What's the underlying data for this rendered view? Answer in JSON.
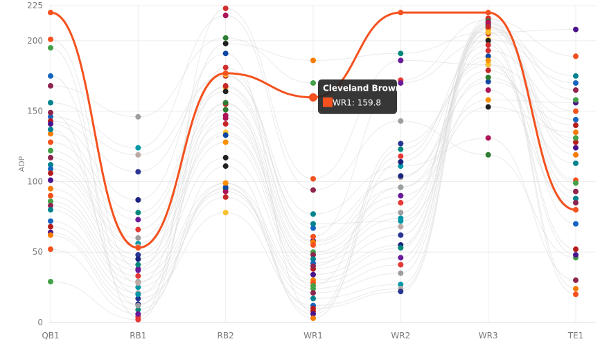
{
  "chart_data": {
    "type": "line",
    "subtype": "parallel-coordinates",
    "categories": [
      "QB1",
      "RB1",
      "RB2",
      "WR1",
      "WR2",
      "WR3",
      "TE1"
    ],
    "ylabel": "ADP",
    "ylim": [
      0,
      225
    ],
    "yticks": [
      0,
      50,
      100,
      150,
      200,
      225
    ],
    "grid": true,
    "colors": [
      "#f4511e",
      "#1a237e",
      "#c62828",
      "#43a047",
      "#00897b",
      "#fbc02d",
      "#8e244d",
      "#6a1b9a",
      "#0d47a1",
      "#00838f",
      "#e53935",
      "#ff8f00",
      "#1565c0",
      "#9e9e9e",
      "#212121",
      "#b71c1c",
      "#0097a7",
      "#d32f2f",
      "#4a148c",
      "#bcaaa4",
      "#2e7d32",
      "#f57c00",
      "#283593",
      "#ad1457"
    ],
    "highlight": {
      "name": "Cleveland Browns",
      "color": "#f4511e",
      "values": [
        220,
        53,
        177,
        159.8,
        220,
        220,
        80
      ]
    },
    "tooltip": {
      "title": "Cleveland Browns",
      "label": "WR1: 159.8",
      "category": "WR1",
      "value": 159.8
    },
    "series": [
      {
        "values": [
          201,
          38,
          198,
          186,
          191,
          206,
          208
        ]
      },
      {
        "values": [
          195,
          4,
          223,
          102,
          186,
          183,
          80
        ]
      },
      {
        "values": [
          168,
          146,
          202,
          170,
          172,
          215,
          189
        ]
      },
      {
        "values": [
          156,
          124,
          218,
          94,
          143,
          119,
          46
        ]
      },
      {
        "values": [
          146,
          119,
          175,
          77,
          111,
          131,
          30
        ]
      },
      {
        "values": [
          143,
          107,
          176,
          67,
          103,
          179,
          113
        ]
      },
      {
        "values": [
          141,
          87,
          191,
          8,
          127,
          183,
          144
        ]
      },
      {
        "values": [
          134,
          78,
          167,
          58,
          104,
          171,
          140
        ]
      },
      {
        "values": [
          128,
          73,
          164,
          57,
          96,
          158,
          156
        ]
      },
      {
        "values": [
          122,
          66,
          155,
          55,
          90,
          153,
          135
        ]
      },
      {
        "values": [
          117,
          60,
          151,
          50,
          85,
          193,
          150
        ]
      },
      {
        "values": [
          112,
          56,
          147,
          48,
          78,
          209,
          158
        ]
      },
      {
        "values": [
          109,
          54,
          141,
          45,
          74,
          212,
          165
        ]
      },
      {
        "values": [
          106,
          48,
          135,
          42,
          68,
          205,
          175
        ]
      },
      {
        "values": [
          101,
          45,
          133,
          38,
          62,
          201,
          170
        ]
      },
      {
        "values": [
          95,
          41,
          128,
          34,
          55,
          211,
          128
        ]
      },
      {
        "values": [
          90,
          37,
          117,
          30,
          53,
          208,
          124
        ]
      },
      {
        "values": [
          86,
          33,
          99,
          28,
          46,
          210,
          119
        ]
      },
      {
        "values": [
          83,
          29,
          95,
          24,
          41,
          216,
          101
        ]
      },
      {
        "values": [
          80,
          25,
          93,
          21,
          35,
          214,
          99
        ]
      },
      {
        "values": [
          72,
          21,
          89,
          17,
          27,
          213,
          93
        ]
      },
      {
        "values": [
          68,
          17,
          78,
          12,
          24,
          210,
          88
        ]
      },
      {
        "values": [
          64,
          13,
          96,
          10,
          22,
          206,
          70
        ]
      },
      {
        "values": [
          62,
          9,
          99,
          6,
          114,
          189,
          52
        ]
      },
      {
        "values": [
          52,
          6,
          111,
          3,
          123,
          186,
          48
        ]
      },
      {
        "values": [
          29,
          2,
          181,
          61,
          170,
          200,
          24
        ]
      },
      {
        "values": [
          149,
          12,
          156,
          26,
          118,
          197,
          20
        ]
      },
      {
        "values": [
          137,
          20,
          145,
          40,
          96,
          174,
          131
        ]
      },
      {
        "values": [
          175,
          28,
          168,
          70,
          72,
          165,
          85
        ]
      }
    ]
  }
}
